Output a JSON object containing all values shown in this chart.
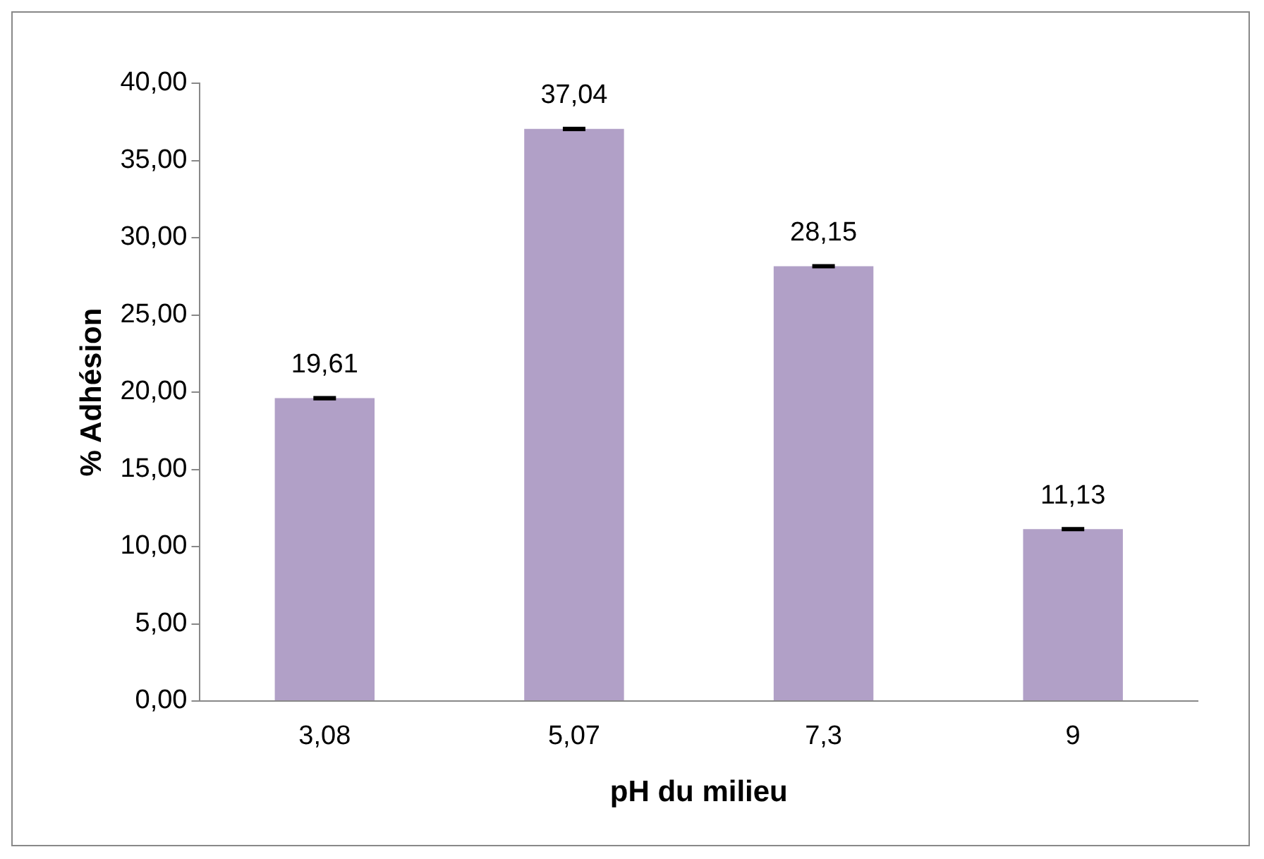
{
  "chart_data": {
    "type": "bar",
    "xlabel": "pH du milieu",
    "ylabel": "% Adhésion",
    "categories": [
      "3,08",
      "5,07",
      "7,3",
      "9"
    ],
    "values": [
      19.61,
      37.04,
      28.15,
      11.13
    ],
    "value_labels": [
      "19,61",
      "37,04",
      "28,15",
      "11,13"
    ],
    "errors": [
      0.05,
      0.05,
      0.05,
      0.05
    ],
    "color": "#b1a0c7",
    "ylim": [
      0,
      40
    ],
    "yticks": [
      {
        "value": 0,
        "label": "0,00"
      },
      {
        "value": 5,
        "label": "5,00"
      },
      {
        "value": 10,
        "label": "10,00"
      },
      {
        "value": 15,
        "label": "15,00"
      },
      {
        "value": 20,
        "label": "20,00"
      },
      {
        "value": 25,
        "label": "25,00"
      },
      {
        "value": 30,
        "label": "30,00"
      },
      {
        "value": 35,
        "label": "35,00"
      },
      {
        "value": 40,
        "label": "40,00"
      }
    ],
    "grid": false,
    "legend": false
  }
}
